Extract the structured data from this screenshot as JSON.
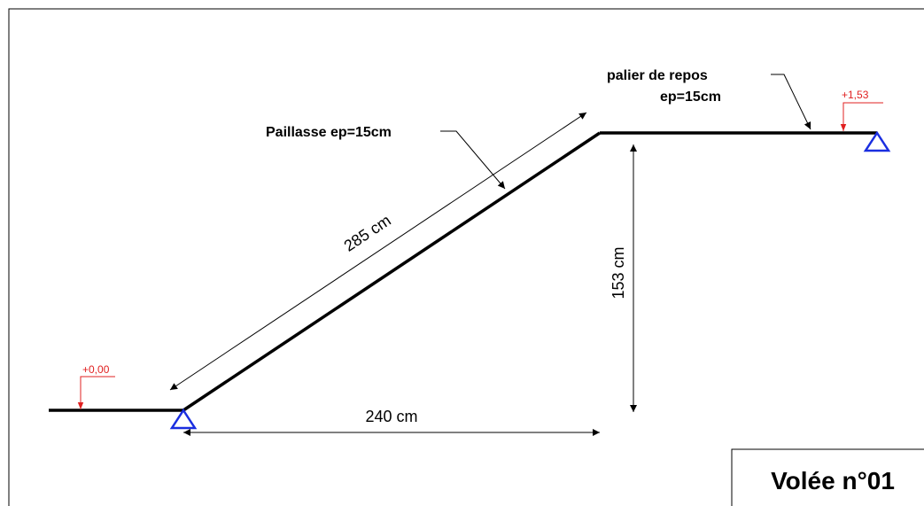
{
  "diagram": {
    "title": "Volée n°01",
    "labels": {
      "flight": "Paillasse ep=15cm",
      "landing_line1": "palier de repos",
      "landing_line2": "ep=15cm",
      "length": "285 cm",
      "height": "153 cm",
      "span": "240 cm",
      "level_bottom": "+0,00",
      "level_top": "+1,53"
    }
  }
}
